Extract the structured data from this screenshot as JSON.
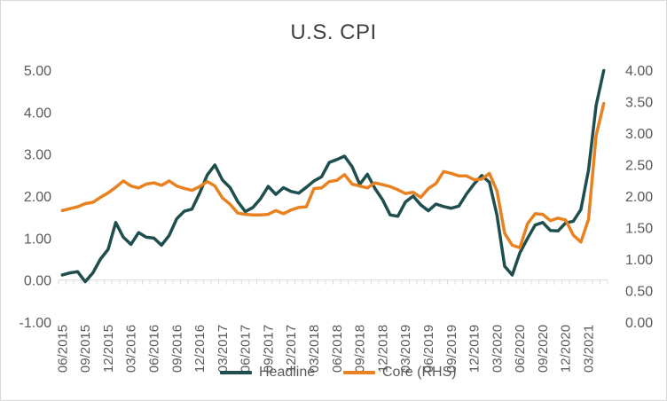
{
  "chart_data": {
    "type": "line",
    "title": "U.S. CPI",
    "x": [
      "06/2015",
      "07/2015",
      "08/2015",
      "09/2015",
      "10/2015",
      "11/2015",
      "12/2015",
      "01/2016",
      "02/2016",
      "03/2016",
      "04/2016",
      "05/2016",
      "06/2016",
      "07/2016",
      "08/2016",
      "09/2016",
      "10/2016",
      "11/2016",
      "12/2016",
      "01/2017",
      "02/2017",
      "03/2017",
      "04/2017",
      "05/2017",
      "06/2017",
      "07/2017",
      "08/2017",
      "09/2017",
      "10/2017",
      "11/2017",
      "12/2017",
      "01/2018",
      "02/2018",
      "03/2018",
      "04/2018",
      "05/2018",
      "06/2018",
      "07/2018",
      "08/2018",
      "09/2018",
      "10/2018",
      "11/2018",
      "12/2018",
      "01/2019",
      "02/2019",
      "03/2019",
      "04/2019",
      "05/2019",
      "06/2019",
      "07/2019",
      "08/2019",
      "09/2019",
      "10/2019",
      "11/2019",
      "12/2019",
      "01/2020",
      "02/2020",
      "03/2020",
      "04/2020",
      "05/2020",
      "06/2020",
      "07/2020",
      "08/2020",
      "09/2020",
      "10/2020",
      "11/2020",
      "12/2020",
      "01/2021",
      "02/2021",
      "03/2021",
      "04/2021",
      "05/2021"
    ],
    "x_tick_labels": [
      "06/2015",
      "09/2015",
      "12/2015",
      "03/2016",
      "06/2016",
      "09/2016",
      "12/2016",
      "03/2017",
      "06/2017",
      "09/2017",
      "12/2017",
      "03/2018",
      "06/2018",
      "09/2018",
      "12/2018",
      "03/2019",
      "06/2019",
      "09/2019",
      "12/2019",
      "03/2020",
      "06/2020",
      "09/2020",
      "12/2020",
      "03/2021"
    ],
    "left_axis": {
      "ylim": [
        -1.0,
        5.0
      ],
      "ticks": [
        "-1.00",
        "0.00",
        "1.00",
        "2.00",
        "3.00",
        "4.00",
        "5.00"
      ]
    },
    "right_axis": {
      "ylim": [
        0.0,
        4.0
      ],
      "ticks": [
        "0.00",
        "0.50",
        "1.00",
        "1.50",
        "2.00",
        "2.50",
        "3.00",
        "3.50",
        "4.00"
      ]
    },
    "grid": false,
    "legend_position": "bottom",
    "series": [
      {
        "name": "Headline",
        "axis": "left",
        "color": "#1f4e4f",
        "values": [
          0.12,
          0.17,
          0.2,
          -0.04,
          0.17,
          0.5,
          0.73,
          1.37,
          1.02,
          0.85,
          1.13,
          1.02,
          1.0,
          0.83,
          1.06,
          1.46,
          1.64,
          1.69,
          2.07,
          2.5,
          2.74,
          2.38,
          2.2,
          1.87,
          1.63,
          1.73,
          1.94,
          2.23,
          2.04,
          2.2,
          2.11,
          2.07,
          2.21,
          2.36,
          2.46,
          2.8,
          2.87,
          2.95,
          2.7,
          2.28,
          2.52,
          2.18,
          1.91,
          1.55,
          1.52,
          1.86,
          2.0,
          1.79,
          1.65,
          1.81,
          1.75,
          1.71,
          1.76,
          2.05,
          2.29,
          2.49,
          2.33,
          1.54,
          0.33,
          0.12,
          0.65,
          0.99,
          1.31,
          1.37,
          1.18,
          1.17,
          1.36,
          1.4,
          1.68,
          2.62,
          4.16,
          4.99
        ]
      },
      {
        "name": "Core (RHS)",
        "axis": "right",
        "color": "#e8811f",
        "values": [
          1.77,
          1.8,
          1.83,
          1.88,
          1.9,
          1.98,
          2.05,
          2.14,
          2.24,
          2.16,
          2.13,
          2.19,
          2.21,
          2.17,
          2.24,
          2.16,
          2.12,
          2.09,
          2.15,
          2.23,
          2.16,
          1.97,
          1.87,
          1.73,
          1.71,
          1.7,
          1.7,
          1.71,
          1.77,
          1.72,
          1.78,
          1.82,
          1.83,
          2.12,
          2.13,
          2.23,
          2.25,
          2.34,
          2.19,
          2.16,
          2.13,
          2.21,
          2.18,
          2.15,
          2.1,
          2.04,
          2.06,
          1.98,
          2.12,
          2.2,
          2.39,
          2.36,
          2.32,
          2.32,
          2.26,
          2.27,
          2.36,
          2.08,
          1.41,
          1.22,
          1.18,
          1.56,
          1.72,
          1.71,
          1.61,
          1.65,
          1.62,
          1.38,
          1.27,
          1.63,
          2.96,
          3.47
        ]
      }
    ]
  }
}
